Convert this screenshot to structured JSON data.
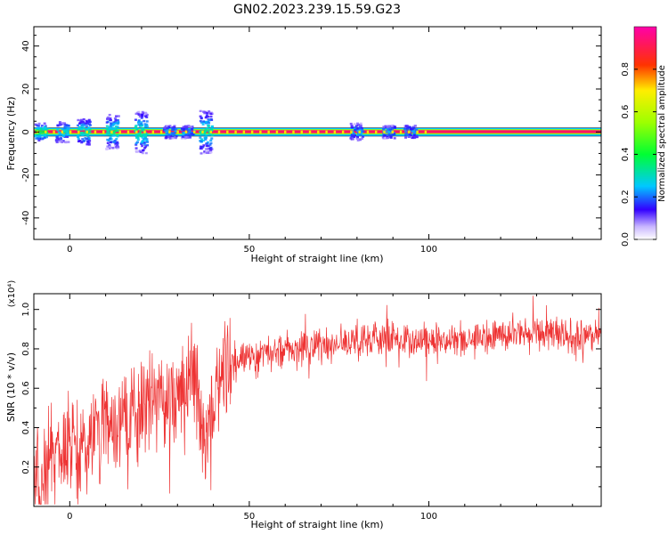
{
  "title": "GN02.2023.239.15.59.G23",
  "colorbar": {
    "label": "Normalized spectral amplitude",
    "ticks": [
      "0.0",
      "0.2",
      "0.4",
      "0.6",
      "0.8"
    ],
    "tick_values": [
      0.0,
      0.2,
      0.4,
      0.6,
      0.8
    ],
    "range": [
      0,
      1
    ]
  },
  "chart_data": [
    {
      "type": "heatmap",
      "xlabel": "Height of straight line (km)",
      "ylabel": "Frequency (Hz)",
      "xlim": [
        -10,
        148
      ],
      "ylim": [
        -50,
        49
      ],
      "x_ticks": [
        "0",
        "50",
        "100"
      ],
      "x_tick_values": [
        0,
        50,
        100
      ],
      "y_ticks": [
        "40",
        "20",
        "0",
        "-20",
        "-40"
      ],
      "y_tick_values": [
        40,
        20,
        0,
        -20,
        -40
      ],
      "dominant_band": {
        "frequency_hz": 0,
        "x_range": [
          -10,
          148
        ],
        "amplitude": 0.9
      },
      "clusters": [
        {
          "x": -8,
          "freq_spread": 4,
          "amplitude": 0.35
        },
        {
          "x": -2,
          "freq_spread": 5,
          "amplitude": 0.25
        },
        {
          "x": 4,
          "freq_spread": 6,
          "amplitude": 0.3
        },
        {
          "x": 12,
          "freq_spread": 8,
          "amplitude": 0.3
        },
        {
          "x": 20,
          "freq_spread": 10,
          "amplitude": 0.3
        },
        {
          "x": 28,
          "freq_spread": 3,
          "amplitude": 0.2
        },
        {
          "x": 33,
          "freq_spread": 3,
          "amplitude": 0.2
        },
        {
          "x": 38,
          "freq_spread": 10,
          "amplitude": 0.3
        },
        {
          "x": 80,
          "freq_spread": 4,
          "amplitude": 0.2
        },
        {
          "x": 89,
          "freq_spread": 3,
          "amplitude": 0.2
        },
        {
          "x": 95,
          "freq_spread": 3,
          "amplitude": 0.2
        }
      ]
    },
    {
      "type": "line",
      "xlabel": "Height of straight line (km)",
      "ylabel": "SNR (10 * v/v)",
      "y_multiplier": "(x10⁴)",
      "xlim": [
        -10,
        148
      ],
      "ylim": [
        0,
        1.08
      ],
      "x_ticks": [
        "0",
        "50",
        "100"
      ],
      "x_tick_values": [
        0,
        50,
        100
      ],
      "y_ticks": [
        "0.2",
        "0.4",
        "0.6",
        "0.8",
        "1.0"
      ],
      "y_tick_values": [
        0.2,
        0.4,
        0.6,
        0.8,
        1.0
      ],
      "color": "#ee3333",
      "series": [
        {
          "x": [
            -10,
            -5,
            0,
            5,
            10,
            15,
            20,
            25,
            30,
            35,
            38,
            40,
            45,
            50,
            55,
            60,
            70,
            80,
            90,
            100,
            110,
            120,
            130,
            140,
            148
          ],
          "values": [
            0.1,
            0.25,
            0.3,
            0.35,
            0.4,
            0.45,
            0.5,
            0.55,
            0.6,
            0.66,
            0.3,
            0.6,
            0.75,
            0.75,
            0.78,
            0.8,
            0.82,
            0.83,
            0.85,
            0.85,
            0.86,
            0.87,
            0.88,
            0.87,
            0.86
          ]
        }
      ]
    }
  ]
}
